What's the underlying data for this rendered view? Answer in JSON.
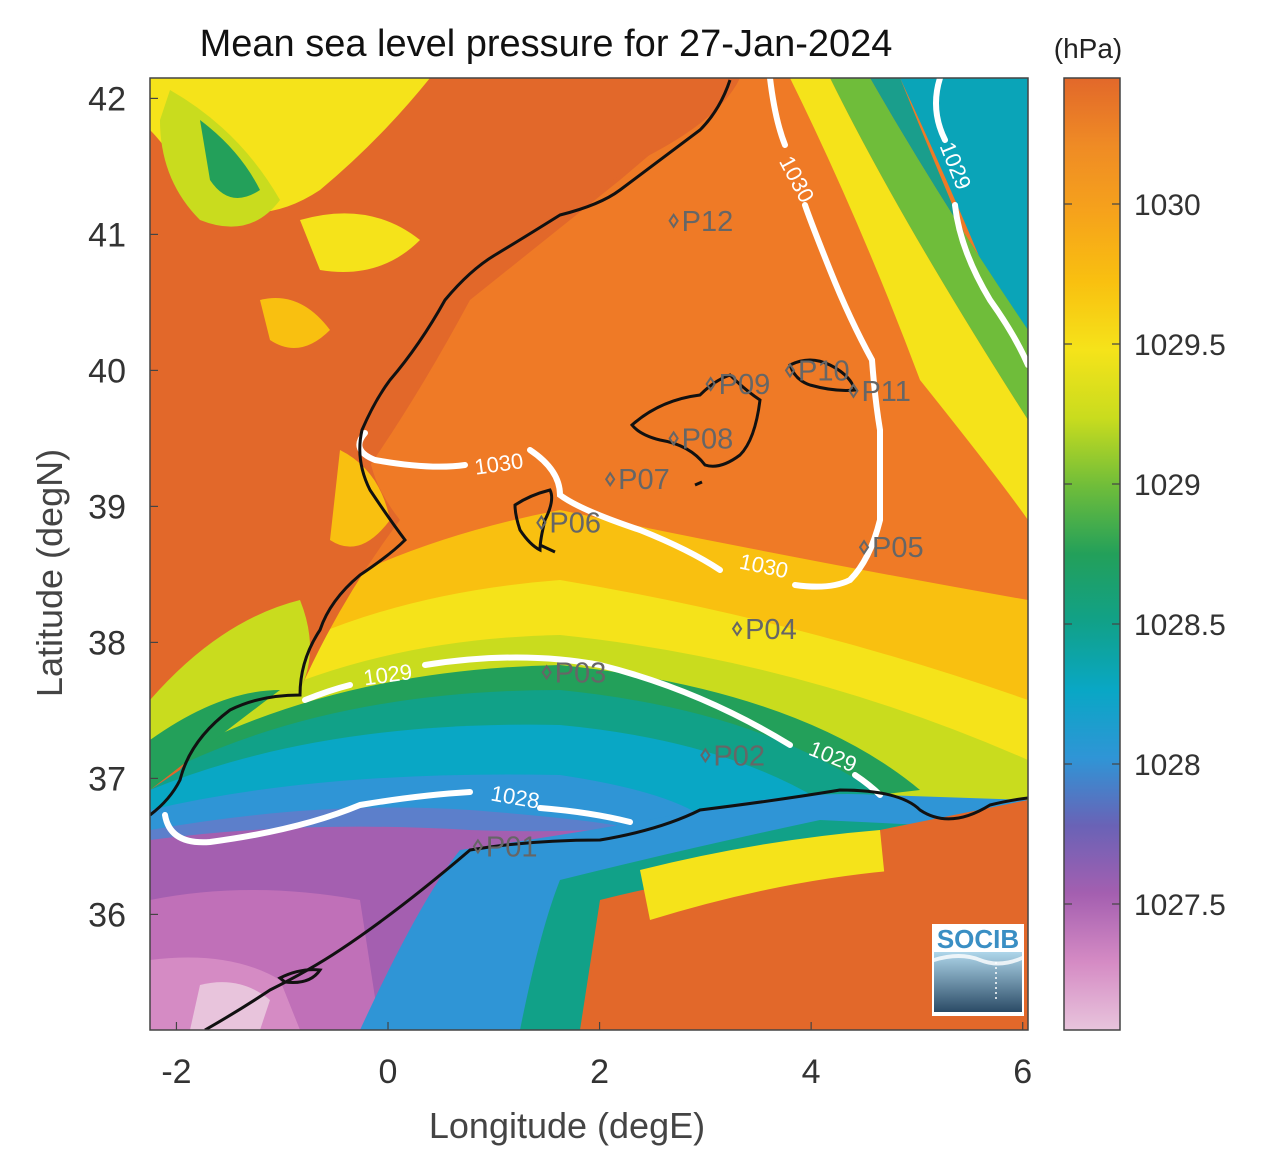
{
  "title": "Mean sea level pressure for 27-Jan-2024",
  "xlabel": "Longitude (degE)",
  "ylabel": "Latitude (degN)",
  "colorbar": {
    "unit": "(hPa)",
    "ticks": [
      "1030",
      "1029.5",
      "1029",
      "1028.5",
      "1028",
      "1027.5"
    ],
    "range": [
      1027.05,
      1030.45
    ],
    "colors": [
      "#e8c4dc",
      "#d58bc4",
      "#a45fb0",
      "#6a62b6",
      "#2f95d6",
      "#09a7c5",
      "#11a188",
      "#23a05a",
      "#6fbd3a",
      "#c9dc1e",
      "#f5e31a",
      "#f9c010",
      "#f6a31b",
      "#ef8b25",
      "#e2682a"
    ]
  },
  "x_ticks": [
    "-2",
    "0",
    "2",
    "4",
    "6"
  ],
  "y_ticks": [
    "42",
    "41",
    "40",
    "39",
    "38",
    "37",
    "36"
  ],
  "map": {
    "lon_range": [
      -2.25,
      6.05
    ],
    "lat_range": [
      35.15,
      42.15
    ],
    "coastline_color": "#111111",
    "contour_color": "#ffffff"
  },
  "contour_labels": [
    {
      "text": "1030",
      "lon": 1.05,
      "lat": 39.3,
      "angle": -8
    },
    {
      "text": "1030",
      "lon": 3.55,
      "lat": 38.55,
      "angle": 12
    },
    {
      "text": "1030",
      "lon": 3.85,
      "lat": 41.4,
      "angle": 62
    },
    {
      "text": "1029",
      "lon": 5.35,
      "lat": 41.5,
      "angle": 68
    },
    {
      "text": "1029",
      "lon": 0.0,
      "lat": 37.75,
      "angle": -8
    },
    {
      "text": "1029",
      "lon": 4.2,
      "lat": 37.15,
      "angle": 22
    },
    {
      "text": "1028",
      "lon": 1.2,
      "lat": 36.85,
      "angle": 10
    }
  ],
  "stations": [
    {
      "name": "P01",
      "lon": 0.85,
      "lat": 36.5
    },
    {
      "name": "P02",
      "lon": 3.0,
      "lat": 37.17
    },
    {
      "name": "P03",
      "lon": 1.5,
      "lat": 37.78
    },
    {
      "name": "P04",
      "lon": 3.3,
      "lat": 38.1
    },
    {
      "name": "P05",
      "lon": 4.5,
      "lat": 38.7
    },
    {
      "name": "P06",
      "lon": 1.45,
      "lat": 38.88
    },
    {
      "name": "P07",
      "lon": 2.1,
      "lat": 39.2
    },
    {
      "name": "P08",
      "lon": 2.7,
      "lat": 39.5
    },
    {
      "name": "P09",
      "lon": 3.05,
      "lat": 39.9
    },
    {
      "name": "P10",
      "lon": 3.8,
      "lat": 40.0
    },
    {
      "name": "P11",
      "lon": 4.4,
      "lat": 39.85
    },
    {
      "name": "P12",
      "lon": 2.7,
      "lat": 41.1
    }
  ],
  "logo_text": "SOCIB"
}
